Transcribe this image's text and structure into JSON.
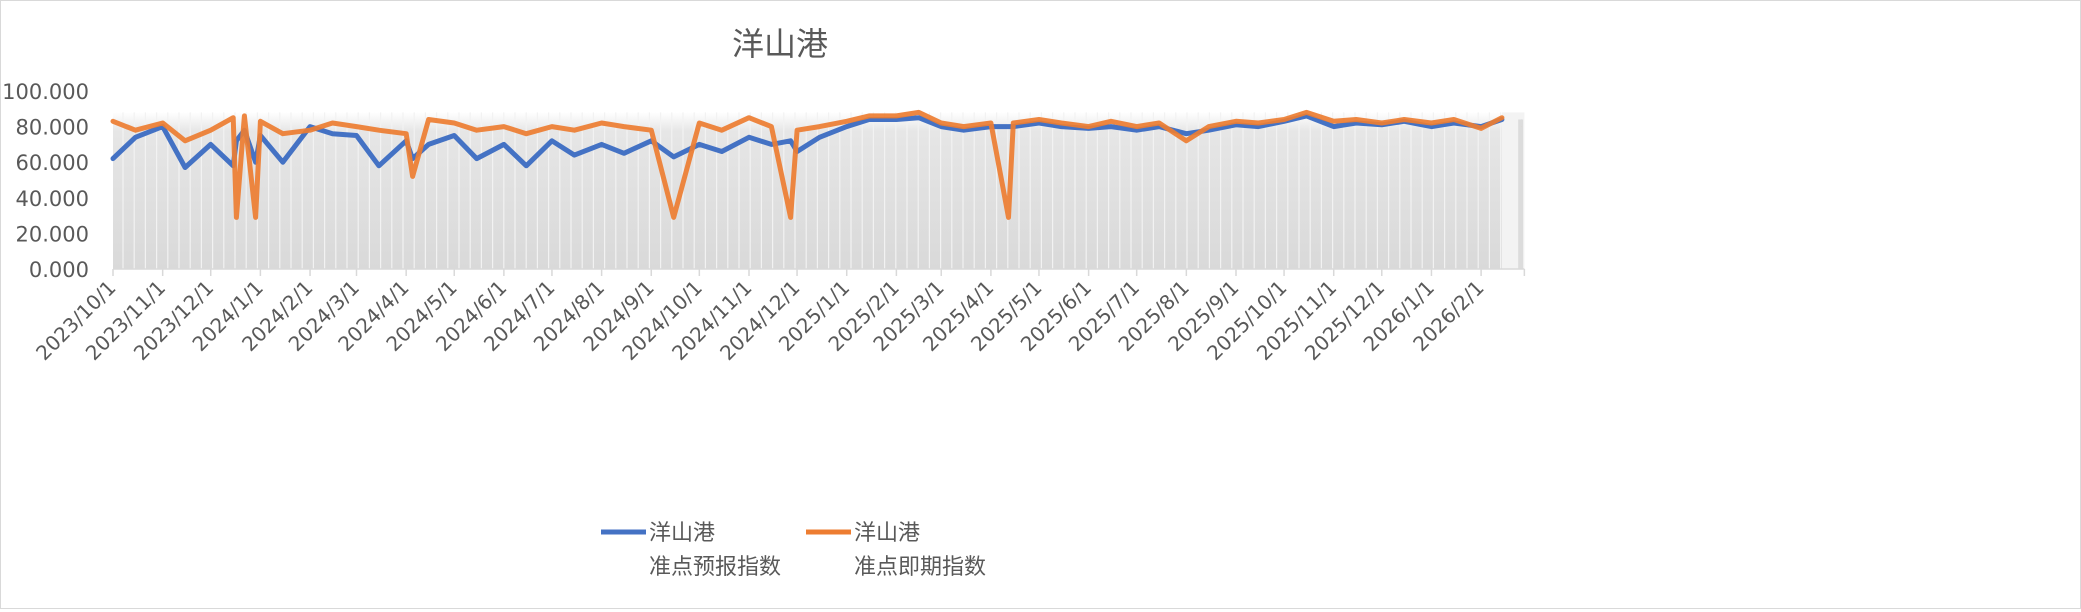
{
  "chart_data": {
    "type": "line",
    "title": "洋山港",
    "xlabel": "",
    "ylabel": "",
    "ylim": [
      0,
      100
    ],
    "xlim": [
      "2023-10-01",
      "2026-02-28"
    ],
    "yticks": [
      "0.000",
      "20.000",
      "40.000",
      "60.000",
      "80.000",
      "100.000"
    ],
    "xticks": [
      "2023/10/1",
      "2023/11/1",
      "2023/12/1",
      "2024/1/1",
      "2024/2/1",
      "2024/3/1",
      "2024/4/1",
      "2024/5/1",
      "2024/6/1",
      "2024/7/1",
      "2024/8/1",
      "2024/9/1",
      "2024/10/1",
      "2024/11/1",
      "2024/12/1",
      "2025/1/1",
      "2025/2/1",
      "2025/3/1",
      "2025/4/1",
      "2025/5/1",
      "2025/6/1",
      "2025/7/1",
      "2025/8/1",
      "2025/9/1",
      "2025/10/1",
      "2025/11/1",
      "2025/12/1",
      "2026/1/1",
      "2026/2/1"
    ],
    "grid": false,
    "legend_placement": "bottom",
    "colors": {
      "forecast": "#4472c4",
      "immediate": "#ed7d31",
      "background_fill": "#dcdcdc"
    },
    "series": [
      {
        "name": "洋山港\n准点预报指数",
        "label_lines": [
          "洋山港",
          "准点预报指数"
        ],
        "color": "#4472c4"
      },
      {
        "name": "洋山港\n准点即期指数",
        "label_lines": [
          "洋山港",
          "准点即期指数"
        ],
        "color": "#ed7d31"
      }
    ],
    "points": [
      [
        "2023-10-01",
        62,
        83
      ],
      [
        "2023-10-15",
        74,
        78
      ],
      [
        "2023-11-01",
        80,
        82
      ],
      [
        "2023-11-15",
        57,
        72
      ],
      [
        "2023-12-01",
        70,
        78
      ],
      [
        "2023-12-15",
        58,
        85
      ],
      [
        "2023-12-17",
        72,
        29
      ],
      [
        "2023-12-22",
        78,
        86
      ],
      [
        "2023-12-29",
        60,
        29
      ],
      [
        "2024-01-01",
        75,
        83
      ],
      [
        "2024-01-15",
        60,
        76
      ],
      [
        "2024-02-01",
        80,
        78
      ],
      [
        "2024-02-15",
        76,
        82
      ],
      [
        "2024-03-01",
        75,
        80
      ],
      [
        "2024-03-15",
        58,
        78
      ],
      [
        "2024-04-01",
        72,
        76
      ],
      [
        "2024-04-05",
        62,
        52
      ],
      [
        "2024-04-15",
        70,
        84
      ],
      [
        "2024-05-01",
        75,
        82
      ],
      [
        "2024-05-15",
        62,
        78
      ],
      [
        "2024-06-01",
        70,
        80
      ],
      [
        "2024-06-15",
        58,
        76
      ],
      [
        "2024-07-01",
        72,
        80
      ],
      [
        "2024-07-15",
        64,
        78
      ],
      [
        "2024-08-01",
        70,
        82
      ],
      [
        "2024-08-15",
        65,
        80
      ],
      [
        "2024-09-01",
        72,
        78
      ],
      [
        "2024-09-15",
        63,
        29
      ],
      [
        "2024-10-01",
        70,
        82
      ],
      [
        "2024-10-15",
        66,
        78
      ],
      [
        "2024-11-01",
        74,
        85
      ],
      [
        "2024-11-15",
        70,
        80
      ],
      [
        "2024-11-27",
        72,
        29
      ],
      [
        "2024-12-01",
        66,
        78
      ],
      [
        "2024-12-15",
        74,
        80
      ],
      [
        "2025-01-01",
        80,
        83
      ],
      [
        "2025-01-15",
        84,
        86
      ],
      [
        "2025-02-01",
        84,
        86
      ],
      [
        "2025-02-15",
        85,
        88
      ],
      [
        "2025-03-01",
        80,
        82
      ],
      [
        "2025-03-15",
        78,
        80
      ],
      [
        "2025-04-01",
        80,
        82
      ],
      [
        "2025-04-12",
        80,
        29
      ],
      [
        "2025-04-15",
        80,
        82
      ],
      [
        "2025-05-01",
        82,
        84
      ],
      [
        "2025-05-15",
        80,
        82
      ],
      [
        "2025-06-01",
        79,
        80
      ],
      [
        "2025-06-15",
        80,
        83
      ],
      [
        "2025-07-01",
        78,
        80
      ],
      [
        "2025-07-15",
        80,
        82
      ],
      [
        "2025-08-01",
        76,
        72
      ],
      [
        "2025-08-15",
        78,
        80
      ],
      [
        "2025-09-01",
        81,
        83
      ],
      [
        "2025-09-15",
        80,
        82
      ],
      [
        "2025-10-01",
        83,
        84
      ],
      [
        "2025-10-15",
        86,
        88
      ],
      [
        "2025-11-01",
        80,
        83
      ],
      [
        "2025-11-15",
        82,
        84
      ],
      [
        "2025-12-01",
        81,
        82
      ],
      [
        "2025-12-15",
        83,
        84
      ],
      [
        "2026-01-01",
        80,
        82
      ],
      [
        "2026-01-15",
        82,
        84
      ],
      [
        "2026-02-01",
        80,
        79
      ],
      [
        "2026-02-14",
        84,
        85
      ],
      [
        "2026-02-20",
        null,
        null
      ],
      [
        "2026-02-26",
        84,
        80
      ]
    ]
  }
}
